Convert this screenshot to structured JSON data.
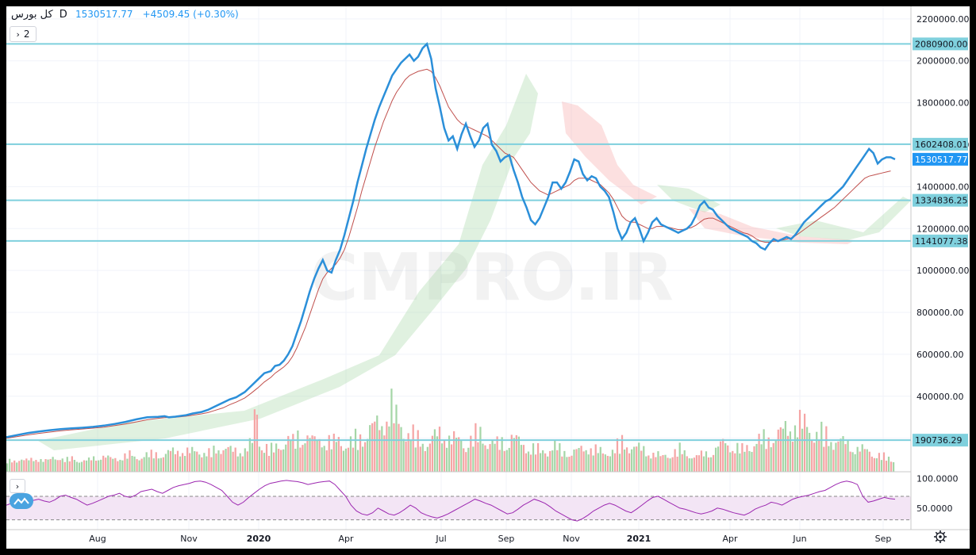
{
  "header": {
    "symbol": "کل بورس",
    "interval": "D",
    "last_price": "1530517.77",
    "change": "+4509.45 (+0.30%)",
    "indicators_toggle": "2"
  },
  "watermark": "CMPRO.IR",
  "colors": {
    "price_line": "#2b8fd9",
    "ma_line": "#c0504d",
    "hline": "#7fd0dd",
    "rsi_line": "#9c27b0",
    "rsi_band": "#f3e5f5",
    "vol_up": "#a5d6a7",
    "vol_down": "#f5a5a5",
    "tag_blue": "#2196f3"
  },
  "chart_data": [
    {
      "type": "line",
      "title": "",
      "y_axis_ticks": [
        "2200000.00",
        "2000000.00",
        "1800000.00",
        "1600000.00",
        "1400000.00",
        "1200000.00",
        "1000000.00",
        "800000.00",
        "600000.00",
        "400000.00",
        "200000.00"
      ],
      "ylim": [
        40000,
        2260000
      ],
      "x_axis_ticks": [
        "Aug",
        "Nov",
        "2020",
        "Apr",
        "Jul",
        "Sep",
        "Nov",
        "2021",
        "Apr",
        "Jun",
        "Sep"
      ],
      "price_series_x": [
        0,
        5,
        10,
        15,
        20,
        25,
        30,
        35,
        40,
        45,
        50,
        55,
        60,
        65,
        70,
        73,
        75,
        78,
        80,
        83,
        86,
        90,
        93,
        96,
        100,
        103,
        106,
        110,
        113,
        116,
        119,
        122,
        124,
        126,
        128,
        130,
        132,
        134,
        136,
        138,
        140,
        142,
        144,
        146,
        148,
        150,
        152,
        154,
        156,
        158,
        160,
        162,
        164,
        166,
        168,
        170,
        172,
        174,
        176,
        178,
        180,
        182,
        184,
        186,
        188,
        190,
        192,
        194,
        196,
        198,
        200,
        202,
        204,
        206,
        208,
        210,
        212,
        214,
        216,
        218,
        220,
        222,
        224,
        226,
        228,
        230,
        232,
        234,
        236,
        238,
        240,
        242,
        244,
        246,
        248,
        250,
        252,
        254,
        256,
        258,
        260,
        262,
        264,
        266,
        268,
        270,
        272,
        274,
        276,
        278,
        280,
        282,
        284,
        286,
        288,
        290,
        292,
        294,
        296,
        298,
        300,
        302,
        304,
        306,
        308,
        310,
        312,
        314,
        316,
        318,
        320,
        322,
        324,
        326,
        328,
        330,
        332,
        334,
        336,
        338,
        340,
        342,
        344,
        346,
        348,
        350,
        352,
        354,
        356,
        358,
        360,
        362,
        364,
        366,
        368,
        370,
        372,
        374,
        376,
        378,
        380,
        382,
        384,
        386,
        388,
        390,
        392,
        394,
        396,
        398,
        400,
        402,
        404,
        406,
        408,
        410
      ],
      "price_series_y": [
        205000,
        215000,
        225000,
        232000,
        238000,
        243000,
        247000,
        250000,
        254000,
        260000,
        268000,
        278000,
        290000,
        300000,
        302000,
        305000,
        300000,
        303000,
        306000,
        310000,
        318000,
        325000,
        335000,
        350000,
        370000,
        385000,
        395000,
        420000,
        450000,
        480000,
        510000,
        520000,
        545000,
        550000,
        570000,
        600000,
        640000,
        700000,
        760000,
        830000,
        900000,
        960000,
        1010000,
        1050000,
        1000000,
        990000,
        1050000,
        1100000,
        1170000,
        1250000,
        1330000,
        1420000,
        1500000,
        1580000,
        1650000,
        1720000,
        1780000,
        1830000,
        1880000,
        1930000,
        1960000,
        1990000,
        2010000,
        2030000,
        2000000,
        2020000,
        2060000,
        2080900,
        2010000,
        1870000,
        1780000,
        1680000,
        1620000,
        1640000,
        1580000,
        1650000,
        1700000,
        1640000,
        1590000,
        1620000,
        1680000,
        1700000,
        1600000,
        1570000,
        1520000,
        1540000,
        1550000,
        1480000,
        1420000,
        1350000,
        1300000,
        1240000,
        1220000,
        1250000,
        1300000,
        1350000,
        1420000,
        1420000,
        1390000,
        1420000,
        1470000,
        1530000,
        1520000,
        1460000,
        1430000,
        1450000,
        1440000,
        1400000,
        1380000,
        1350000,
        1280000,
        1200000,
        1150000,
        1180000,
        1230000,
        1250000,
        1200000,
        1140000,
        1180000,
        1230000,
        1250000,
        1220000,
        1210000,
        1200000,
        1190000,
        1180000,
        1190000,
        1200000,
        1220000,
        1260000,
        1310000,
        1330000,
        1300000,
        1290000,
        1260000,
        1240000,
        1220000,
        1200000,
        1190000,
        1180000,
        1170000,
        1160000,
        1140000,
        1130000,
        1110000,
        1100000,
        1130000,
        1150000,
        1140000,
        1150000,
        1160000,
        1150000,
        1170000,
        1200000,
        1230000,
        1250000,
        1270000,
        1290000,
        1310000,
        1330000,
        1340000,
        1360000,
        1380000,
        1400000,
        1430000,
        1460000,
        1490000,
        1520000,
        1550000,
        1580000,
        1560000,
        1510000,
        1530000,
        1540000,
        1540000,
        1530517.77
      ],
      "ma_series_y": [
        200000,
        208000,
        216000,
        223000,
        229000,
        235000,
        240000,
        244000,
        248000,
        253000,
        260000,
        268000,
        278000,
        288000,
        295000,
        298000,
        299000,
        300000,
        302000,
        305000,
        310000,
        316000,
        322000,
        332000,
        345000,
        360000,
        372000,
        392000,
        415000,
        440000,
        468000,
        490000,
        510000,
        525000,
        540000,
        560000,
        590000,
        630000,
        680000,
        730000,
        790000,
        850000,
        910000,
        960000,
        990000,
        1010000,
        1030000,
        1060000,
        1100000,
        1160000,
        1230000,
        1300000,
        1380000,
        1450000,
        1520000,
        1590000,
        1650000,
        1710000,
        1760000,
        1810000,
        1850000,
        1880000,
        1910000,
        1930000,
        1940000,
        1950000,
        1955000,
        1960000,
        1950000,
        1920000,
        1880000,
        1830000,
        1780000,
        1750000,
        1720000,
        1700000,
        1690000,
        1680000,
        1670000,
        1660000,
        1650000,
        1640000,
        1620000,
        1600000,
        1580000,
        1560000,
        1550000,
        1540000,
        1510000,
        1480000,
        1450000,
        1420000,
        1400000,
        1380000,
        1370000,
        1360000,
        1370000,
        1380000,
        1390000,
        1400000,
        1410000,
        1430000,
        1440000,
        1440000,
        1440000,
        1430000,
        1420000,
        1410000,
        1390000,
        1370000,
        1340000,
        1300000,
        1260000,
        1240000,
        1230000,
        1230000,
        1220000,
        1210000,
        1200000,
        1200000,
        1210000,
        1210000,
        1210000,
        1205000,
        1200000,
        1195000,
        1195000,
        1200000,
        1205000,
        1215000,
        1230000,
        1245000,
        1250000,
        1250000,
        1240000,
        1230000,
        1220000,
        1210000,
        1200000,
        1190000,
        1180000,
        1175000,
        1165000,
        1150000,
        1140000,
        1135000,
        1135000,
        1140000,
        1140000,
        1145000,
        1150000,
        1155000,
        1165000,
        1180000,
        1195000,
        1210000,
        1225000,
        1240000,
        1255000,
        1270000,
        1285000,
        1300000,
        1320000,
        1340000,
        1360000,
        1380000,
        1400000,
        1420000,
        1440000,
        1450000,
        1455000,
        1460000,
        1465000,
        1470000,
        1475000
      ],
      "horizontal_levels": [
        "2080900.00",
        "1602408.01",
        "1334836.25",
        "1141077.38",
        "190736.29"
      ],
      "current_price_tag": "1530517.77"
    },
    {
      "type": "line",
      "title": "",
      "y_axis_ticks": [
        "100.0000",
        "50.0000"
      ],
      "ylim": [
        20,
        105
      ],
      "band": [
        30,
        70
      ],
      "rsi_series": [
        55,
        58,
        60,
        62,
        60,
        63,
        65,
        62,
        60,
        64,
        70,
        72,
        68,
        65,
        60,
        55,
        58,
        62,
        66,
        70,
        72,
        75,
        70,
        68,
        72,
        78,
        80,
        82,
        78,
        75,
        80,
        85,
        88,
        90,
        92,
        95,
        96,
        94,
        90,
        85,
        80,
        70,
        60,
        55,
        60,
        68,
        75,
        82,
        88,
        92,
        94,
        96,
        97,
        96,
        95,
        93,
        90,
        92,
        94,
        95,
        96,
        90,
        80,
        70,
        55,
        45,
        40,
        38,
        42,
        50,
        45,
        40,
        38,
        42,
        48,
        55,
        50,
        42,
        38,
        35,
        33,
        36,
        40,
        45,
        50,
        55,
        60,
        65,
        62,
        58,
        55,
        50,
        45,
        40,
        42,
        48,
        55,
        60,
        65,
        62,
        58,
        52,
        45,
        40,
        35,
        30,
        28,
        32,
        38,
        45,
        50,
        55,
        58,
        55,
        50,
        45,
        42,
        48,
        55,
        62,
        68,
        70,
        65,
        60,
        55,
        50,
        48,
        45,
        42,
        40,
        42,
        45,
        50,
        48,
        45,
        42,
        40,
        38,
        42,
        48,
        52,
        55,
        60,
        58,
        55,
        60,
        65,
        68,
        70,
        72,
        75,
        78,
        80,
        85,
        90,
        94,
        96,
        94,
        90,
        70,
        60,
        62,
        65,
        68,
        66,
        65
      ]
    },
    {
      "type": "bar",
      "title": "",
      "note": "volume",
      "categories": [],
      "values_normalized": [
        0.35,
        0.4,
        0.45,
        0.38,
        0.42,
        0.5,
        0.48,
        0.36,
        0.4,
        0.55,
        0.6,
        0.45,
        0.42,
        0.5,
        0.38,
        0.35,
        0.4,
        0.52,
        0.58,
        0.62,
        0.55,
        0.48,
        0.5,
        0.6,
        0.65,
        0.7,
        0.55,
        0.6,
        0.68,
        0.72,
        0.8,
        0.75,
        0.7,
        0.85,
        0.9,
        1.0,
        0.95,
        0.88,
        0.9,
        0.95,
        0.85,
        0.8,
        0.92,
        1.05,
        1.2,
        1.1,
        0.95,
        0.9,
        1.0,
        1.1,
        1.3,
        2.9,
        1.5,
        1.2,
        1.0,
        1.1,
        1.3,
        1.5,
        1.6,
        1.4,
        1.8,
        2.0,
        1.7,
        1.5,
        1.6,
        1.7,
        1.5,
        1.4,
        1.6,
        1.5,
        1.3,
        1.4,
        1.6,
        1.8,
        2.0,
        2.2,
        2.4,
        2.6,
        3.0,
        3.5,
        2.8,
        2.5,
        2.2,
        2.0,
        1.8,
        1.6,
        1.5,
        1.4,
        1.7,
        1.9,
        2.0,
        1.8,
        1.6,
        1.5,
        1.4,
        1.6,
        1.8,
        1.9,
        1.7,
        1.5,
        1.4,
        1.3,
        1.5,
        1.6,
        1.7,
        1.5,
        1.3,
        1.2,
        1.1,
        1.0,
        0.9,
        1.0,
        1.1,
        1.2,
        1.0,
        0.9,
        0.8,
        0.9,
        1.0,
        1.1,
        1.2,
        1.0,
        0.9,
        0.8,
        0.9,
        1.0,
        1.2,
        1.4,
        1.3,
        1.2,
        1.1,
        1.0,
        0.9,
        0.8,
        0.7,
        0.6,
        0.7,
        0.8,
        0.9,
        1.0,
        0.8,
        0.7,
        0.6,
        0.7,
        0.8,
        0.9,
        1.0,
        1.2,
        1.4,
        1.3,
        1.2,
        1.1,
        1.0,
        1.2,
        1.4,
        1.5,
        1.6,
        1.7,
        1.8,
        1.9,
        2.0,
        2.2,
        2.4,
        2.6,
        2.5,
        2.4,
        2.2,
        2.0,
        1.9,
        1.8,
        1.7,
        1.6,
        1.5,
        1.4,
        1.3,
        1.2,
        1.1,
        1.0,
        0.9,
        0.8,
        0.7,
        0.6,
        0.5,
        0.4
      ]
    }
  ]
}
